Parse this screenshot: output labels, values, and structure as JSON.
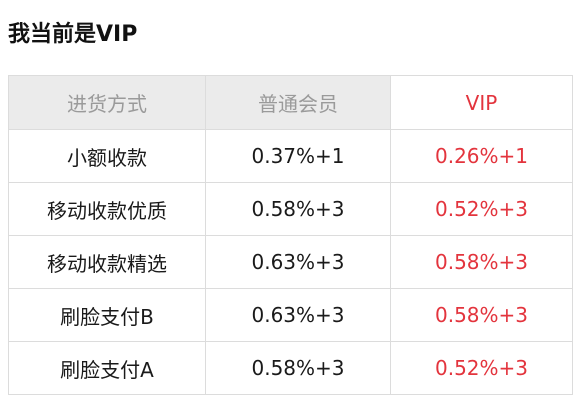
{
  "header": {
    "title": "我当前是VIP"
  },
  "table": {
    "columns": [
      "进货方式",
      "普通会员",
      "VIP"
    ],
    "rows": [
      [
        "小额收款",
        "0.37%+1",
        "0.26%+1"
      ],
      [
        "移动收款优质",
        "0.58%+3",
        "0.52%+3"
      ],
      [
        "移动收款精选",
        "0.63%+3",
        "0.58%+3"
      ],
      [
        "刷脸支付B",
        "0.63%+3",
        "0.58%+3"
      ],
      [
        "刷脸支付A",
        "0.58%+3",
        "0.52%+3"
      ]
    ]
  }
}
